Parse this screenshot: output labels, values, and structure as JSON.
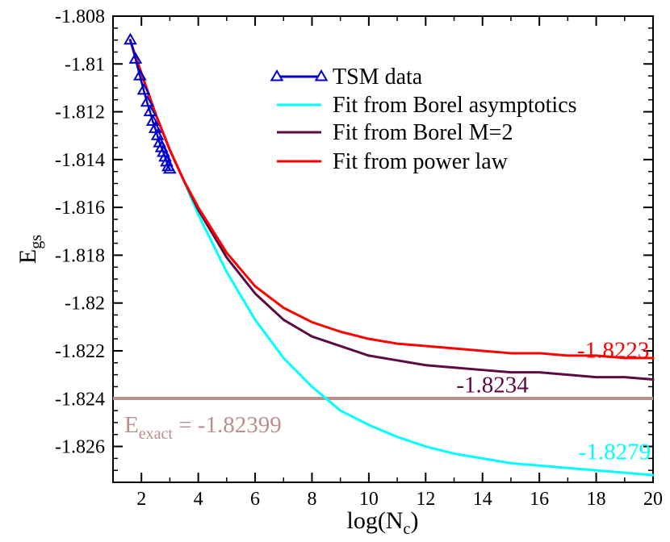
{
  "chart_data": {
    "type": "line",
    "xlabel": {
      "main": "log(N",
      "sub": "c",
      "tail": ")"
    },
    "ylabel": {
      "main": "E",
      "sub": "gs"
    },
    "xlim": [
      1,
      20
    ],
    "ylim": [
      -1.8275,
      -1.808
    ],
    "x_ticks": [
      2,
      4,
      6,
      8,
      10,
      12,
      14,
      16,
      18,
      20
    ],
    "x_tick_labels": [
      "2",
      "4",
      "6",
      "8",
      "10",
      "12",
      "14",
      "16",
      "18",
      "20"
    ],
    "y_ticks": [
      -1.808,
      -1.81,
      -1.812,
      -1.814,
      -1.816,
      -1.818,
      -1.82,
      -1.822,
      -1.824,
      -1.826
    ],
    "y_tick_labels": [
      "-1.808",
      "-1.81",
      "-1.812",
      "-1.814",
      "-1.816",
      "-1.818",
      "-1.82",
      "-1.822",
      "-1.824",
      "-1.826"
    ],
    "legend": [
      {
        "label": "TSM data",
        "color": "#0000cc",
        "marker": "triangle-open"
      },
      {
        "label": "Fit from Borel asymptotics",
        "color": "#00ffff"
      },
      {
        "label": "Fit from Borel M=2",
        "color": "#5c0a41"
      },
      {
        "label": "Fit from power law",
        "color": "#ff0000"
      }
    ],
    "series": [
      {
        "name": "TSM data",
        "color": "#0000cc",
        "x": [
          1.609,
          1.792,
          1.946,
          2.079,
          2.197,
          2.303,
          2.398,
          2.485,
          2.565,
          2.639,
          2.708,
          2.773,
          2.833,
          2.89,
          2.944,
          2.996
        ],
        "y": [
          -1.809,
          -1.8098,
          -1.8105,
          -1.8111,
          -1.8116,
          -1.812,
          -1.8124,
          -1.8127,
          -1.813,
          -1.8133,
          -1.8135,
          -1.8137,
          -1.8139,
          -1.8141,
          -1.8143,
          -1.8144
        ]
      },
      {
        "name": "Fit from Borel asymptotics",
        "color": "#00ffff",
        "x": [
          1.6,
          2,
          2.5,
          3,
          3.5,
          4,
          5,
          6,
          7,
          8,
          9,
          10,
          11,
          12,
          13,
          14,
          15,
          16,
          17,
          18,
          19,
          20
        ],
        "y": [
          -1.809,
          -1.8104,
          -1.8121,
          -1.8136,
          -1.8149,
          -1.8163,
          -1.8187,
          -1.8207,
          -1.8223,
          -1.8235,
          -1.8245,
          -1.8251,
          -1.8256,
          -1.826,
          -1.8263,
          -1.8265,
          -1.8267,
          -1.8268,
          -1.8269,
          -1.827,
          -1.8271,
          -1.8272
        ]
      },
      {
        "name": "Fit from Borel M=2",
        "color": "#5c0a41",
        "x": [
          1.6,
          2,
          2.5,
          3,
          3.5,
          4,
          5,
          6,
          7,
          8,
          9,
          10,
          11,
          12,
          13,
          14,
          15,
          16,
          17,
          18,
          19,
          20
        ],
        "y": [
          -1.809,
          -1.8104,
          -1.8121,
          -1.8136,
          -1.8149,
          -1.8161,
          -1.8181,
          -1.8196,
          -1.8207,
          -1.8214,
          -1.8218,
          -1.8222,
          -1.8224,
          -1.8226,
          -1.8227,
          -1.8228,
          -1.8229,
          -1.8229,
          -1.823,
          -1.8231,
          -1.8231,
          -1.8232
        ]
      },
      {
        "name": "Fit from power law",
        "color": "#ff0000",
        "x": [
          1.6,
          2,
          2.5,
          3,
          3.5,
          4,
          5,
          6,
          7,
          8,
          9,
          10,
          11,
          12,
          13,
          14,
          15,
          16,
          17,
          18,
          19,
          20
        ],
        "y": [
          -1.809,
          -1.8104,
          -1.8121,
          -1.8136,
          -1.8149,
          -1.816,
          -1.8179,
          -1.8193,
          -1.8202,
          -1.8208,
          -1.8212,
          -1.8215,
          -1.8217,
          -1.8218,
          -1.8219,
          -1.822,
          -1.8221,
          -1.8221,
          -1.8222,
          -1.8222,
          -1.8223,
          -1.8223
        ]
      }
    ],
    "reference_line": {
      "name": "E_exact",
      "value": -1.82399,
      "color": "#bc8f8f"
    },
    "annotations": [
      {
        "text": "-1.8223",
        "color": "#ff0000",
        "x": 18.6,
        "y": -1.82195
      },
      {
        "text": "-1.8234",
        "color": "#5c0a41",
        "x": 14.35,
        "y": -1.8234
      },
      {
        "text": "-1.8279",
        "color": "#00ffff",
        "x": 18.65,
        "y": -1.8262
      }
    ],
    "exact_label": {
      "main": "E",
      "sub": "exact",
      "tail": " = -1.82399",
      "color": "#bc8f8f",
      "x": 1.4,
      "y": -1.825
    }
  }
}
